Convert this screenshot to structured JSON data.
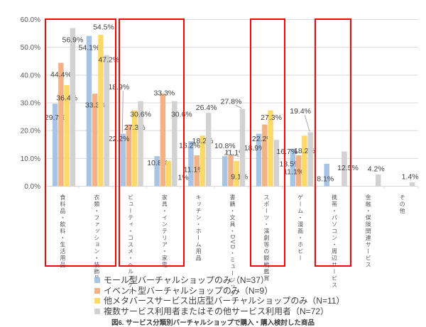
{
  "figure_caption": "図6. サービス分類別バーチャルショップで購入・購入検討した商品",
  "colors": {
    "series_blue": "#A8C4E5",
    "series_orange": "#F2B285",
    "series_yellow": "#FFD967",
    "series_gray": "#D2D2D2",
    "gridline": "#D9D9D9",
    "axis_text": "#595959",
    "data_label_text": "#404040",
    "highlight_border": "#FF0000",
    "leader_line": "#A6A6A6"
  },
  "chart_data": {
    "type": "bar",
    "title": "",
    "xlabel": "",
    "ylabel": "",
    "ylim": [
      0,
      60
    ],
    "ytick_step": 10,
    "ytick_labels": [
      "0.0%",
      "10.0%",
      "20.0%",
      "30.0%",
      "40.0%",
      "50.0%",
      "60.0%"
    ],
    "grid": true,
    "value_suffix": "%",
    "categories": [
      "食料品・飲料・生活用品",
      "衣類・ファッション・装飾品",
      "ビューティ・コスメ・ヘルスケア",
      "家具・インテリア・家電",
      "キッチン・ホーム用品",
      "書籍・文具・DVD・ミュージック",
      "スポーツ・演劇等の観戦鑑賞",
      "ゲーム・漫画・ホビー",
      "携帯・パソコン・周辺サービス",
      "金融・保険関連サービス",
      "その他"
    ],
    "series": [
      {
        "name": "モール型バーチャルショップのみ（N=37）",
        "color_key": "series_blue",
        "values": [
          29.7,
          54.1,
          18.9,
          10.8,
          16.2,
          10.8,
          18.9,
          13.5,
          8.1,
          null,
          null
        ]
      },
      {
        "name": "イベント型バーチャルショップのみ（N=9）",
        "color_key": "series_orange",
        "values": [
          44.4,
          33.3,
          22.2,
          33.3,
          11.1,
          11.1,
          22.2,
          11.1,
          null,
          null,
          null
        ]
      },
      {
        "name": "他メタバースサービス出店型バーチャルショップのみ（N=11）",
        "color_key": "series_yellow",
        "values": [
          36.4,
          54.5,
          27.3,
          9.1,
          18.2,
          9.1,
          27.3,
          18.2,
          null,
          null,
          null
        ]
      },
      {
        "name": "複数サービス利用者またはその他サービス利用者（N=72）",
        "color_key": "series_gray",
        "values": [
          56.9,
          47.2,
          30.6,
          30.6,
          26.4,
          27.8,
          16.7,
          19.4,
          12.5,
          4.2,
          1.4
        ]
      }
    ],
    "legend_position": "bottom",
    "highlight_boxes": [
      {
        "categories": [
          "食料品・飲料・生活用品",
          "衣類・ファッション・装飾品"
        ]
      },
      {
        "categories": [
          "ビューティ・コスメ・ヘルスケア",
          "家具・インテリア・家電"
        ]
      },
      {
        "categories": [
          "スポーツ・演劇等の観戦鑑賞"
        ]
      },
      {
        "categories": [
          "携帯・パソコン・周辺サービス"
        ]
      }
    ]
  }
}
